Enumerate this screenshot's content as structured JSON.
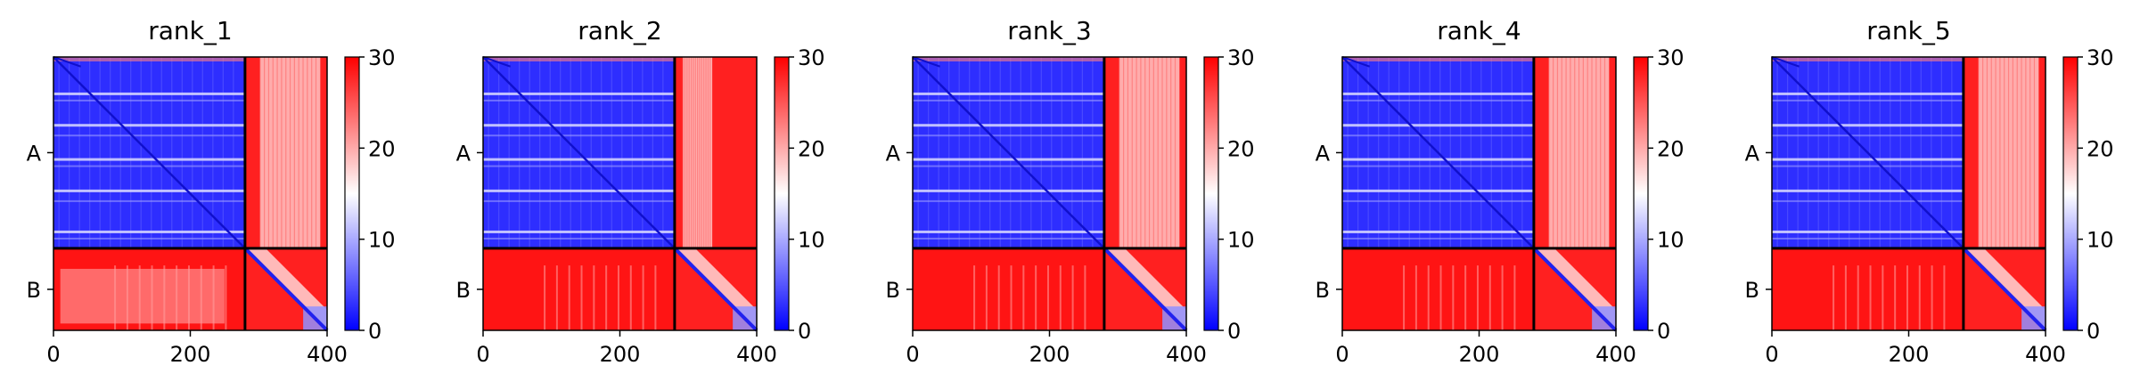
{
  "chart_data": [
    {
      "type": "heatmap",
      "title": "rank_1",
      "chains": [
        "A",
        "B"
      ],
      "chain_boundary": 280,
      "x_ticks": [
        0,
        200,
        400
      ],
      "xlim": [
        0,
        400
      ],
      "colorbar": {
        "ticks": [
          0,
          10,
          20,
          30
        ],
        "range": [
          0,
          30
        ],
        "colors": [
          "#0000ff",
          "#ffffff",
          "#ff0000"
        ]
      },
      "b_to_a_block": "mixed",
      "near_diagonal_stripes": [
        12,
        58,
        108,
        154,
        214
      ],
      "ab_texture": "white-streaks"
    },
    {
      "type": "heatmap",
      "title": "rank_2",
      "chains": [
        "A",
        "B"
      ],
      "chain_boundary": 280,
      "x_ticks": [
        0,
        200,
        400
      ],
      "xlim": [
        0,
        400
      ],
      "colorbar": {
        "ticks": [
          0,
          10,
          20,
          30
        ],
        "range": [
          0,
          30
        ],
        "colors": [
          "#0000ff",
          "#ffffff",
          "#ff0000"
        ]
      },
      "b_to_a_block": "red",
      "near_diagonal_stripes": [
        12,
        58,
        108,
        154,
        214
      ],
      "ab_texture": "white-left"
    },
    {
      "type": "heatmap",
      "title": "rank_3",
      "chains": [
        "A",
        "B"
      ],
      "chain_boundary": 280,
      "x_ticks": [
        0,
        200,
        400
      ],
      "xlim": [
        0,
        400
      ],
      "colorbar": {
        "ticks": [
          0,
          10,
          20,
          30
        ],
        "range": [
          0,
          30
        ],
        "colors": [
          "#0000ff",
          "#ffffff",
          "#ff0000"
        ]
      },
      "b_to_a_block": "red",
      "near_diagonal_stripes": [
        12,
        58,
        108,
        154,
        214
      ],
      "ab_texture": "white-streaks"
    },
    {
      "type": "heatmap",
      "title": "rank_4",
      "chains": [
        "A",
        "B"
      ],
      "chain_boundary": 280,
      "x_ticks": [
        0,
        200,
        400
      ],
      "xlim": [
        0,
        400
      ],
      "colorbar": {
        "ticks": [
          0,
          10,
          20,
          30
        ],
        "range": [
          0,
          30
        ],
        "colors": [
          "#0000ff",
          "#ffffff",
          "#ff0000"
        ]
      },
      "b_to_a_block": "red",
      "near_diagonal_stripes": [
        12,
        58,
        108,
        154,
        214
      ],
      "ab_texture": "white-streaks"
    },
    {
      "type": "heatmap",
      "title": "rank_5",
      "chains": [
        "A",
        "B"
      ],
      "chain_boundary": 280,
      "x_ticks": [
        0,
        200,
        400
      ],
      "xlim": [
        0,
        400
      ],
      "colorbar": {
        "ticks": [
          0,
          10,
          20,
          30
        ],
        "range": [
          0,
          30
        ],
        "colors": [
          "#0000ff",
          "#ffffff",
          "#ff0000"
        ]
      },
      "b_to_a_block": "red",
      "near_diagonal_stripes": [
        12,
        58,
        108,
        154,
        214
      ],
      "ab_texture": "white-streaks"
    }
  ]
}
